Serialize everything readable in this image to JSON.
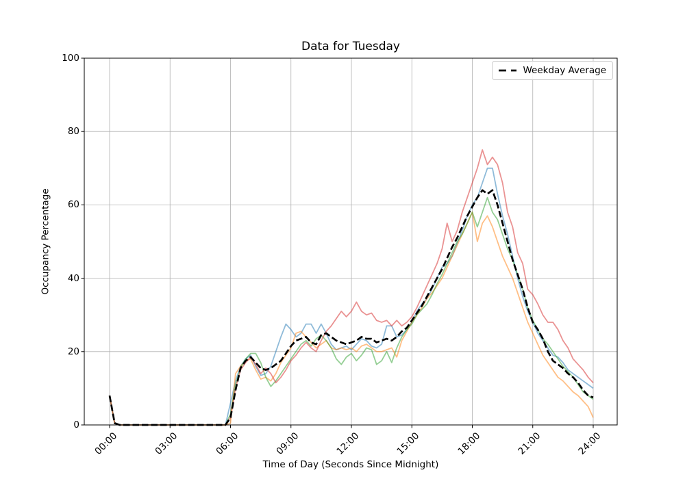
{
  "figure": {
    "title": "Data for Tuesday",
    "xlabel": "Time of Day (Seconds Since Midnight)",
    "ylabel": "Occupancy Percentage",
    "legend_label": "Weekday Average"
  },
  "axes": {
    "x_tick_labels": [
      "00:00",
      "03:00",
      "06:00",
      "09:00",
      "12:00",
      "15:00",
      "18:00",
      "21:00",
      "24:00"
    ],
    "y_tick_labels": [
      "0",
      "20",
      "40",
      "60",
      "80",
      "100"
    ],
    "grid_color": "#b0b0b0",
    "spine_color": "#000000",
    "legend_border_color": "#cccccc"
  },
  "chart_data": {
    "type": "line",
    "title": "Data for Tuesday",
    "xlabel": "Time of Day (Seconds Since Midnight)",
    "ylabel": "Occupancy Percentage",
    "ylim": [
      0,
      100
    ],
    "x_hours_range": [
      0,
      24
    ],
    "x_step_hours": 0.25,
    "grid": true,
    "legend_position": "upper right",
    "x_tick_labels": [
      "00:00",
      "03:00",
      "06:00",
      "09:00",
      "12:00",
      "15:00",
      "18:00",
      "21:00",
      "24:00"
    ],
    "y_ticks": [
      0,
      20,
      40,
      60,
      80,
      100
    ],
    "series": [
      {
        "name": "series-blue",
        "color": "#1f77b4",
        "opacity": 0.5,
        "dashed": false,
        "values": [
          8,
          0.5,
          0,
          0,
          0,
          0,
          0,
          0,
          0,
          0,
          0,
          0,
          0,
          0,
          0,
          0,
          0,
          0,
          0,
          0,
          0,
          0,
          0,
          0,
          6,
          12,
          16,
          18,
          19,
          16,
          13.5,
          14,
          16,
          20,
          24,
          27.5,
          26,
          24,
          25,
          27.5,
          27.5,
          25,
          27.5,
          25,
          22,
          20.5,
          21,
          21.5,
          20.5,
          22,
          23.5,
          23,
          21.5,
          21,
          22,
          27,
          27,
          24,
          24.5,
          26,
          28,
          31,
          33,
          34.5,
          37,
          40,
          43,
          44,
          46,
          49.5,
          53,
          57,
          60,
          62,
          66,
          70,
          70,
          63,
          57,
          52,
          46,
          40,
          35,
          31,
          28,
          25,
          23,
          21,
          19,
          18.5,
          17,
          15,
          14,
          13,
          12,
          11,
          10
        ]
      },
      {
        "name": "series-orange",
        "color": "#ff7f0e",
        "opacity": 0.5,
        "dashed": false,
        "values": [
          8,
          0.5,
          0,
          0,
          0,
          0,
          0,
          0,
          0,
          0,
          0,
          0,
          0,
          0,
          0,
          0,
          0,
          0,
          0,
          0,
          0,
          0,
          0,
          0,
          0.5,
          14,
          16,
          17.5,
          18,
          15,
          12.5,
          13,
          12,
          14,
          17,
          19,
          21,
          25,
          25.5,
          24,
          22.5,
          21,
          22,
          23,
          21,
          20.5,
          21,
          20.5,
          21,
          20,
          21.5,
          22,
          21,
          20,
          20,
          20.5,
          21,
          18.5,
          23,
          25.5,
          28,
          30,
          32,
          34.5,
          36,
          38,
          40,
          43,
          46,
          49,
          52,
          55,
          58,
          50,
          55,
          57,
          54,
          50,
          46,
          43,
          40,
          36,
          32,
          28,
          25,
          22,
          19,
          17,
          15,
          13,
          12,
          10.5,
          9,
          8,
          6.5,
          5,
          2
        ]
      },
      {
        "name": "series-green",
        "color": "#2ca02c",
        "opacity": 0.5,
        "dashed": false,
        "values": [
          8,
          0.5,
          0,
          0,
          0,
          0,
          0,
          0,
          0,
          0,
          0,
          0,
          0,
          0,
          0,
          0,
          0,
          0,
          0,
          0,
          0,
          0,
          0,
          0,
          3,
          11,
          15.5,
          18,
          19.5,
          19.5,
          17,
          13,
          10.5,
          12,
          14,
          16,
          18,
          20,
          22,
          23,
          21.5,
          23.5,
          24.5,
          23,
          21,
          18,
          16.5,
          18.5,
          19.5,
          17.5,
          19,
          21,
          20.5,
          16.5,
          17.5,
          20,
          17,
          21,
          24,
          26,
          27.5,
          30,
          31.5,
          33,
          35.5,
          38.5,
          41,
          44,
          47,
          50,
          52,
          55,
          58,
          54,
          58,
          62,
          58,
          56,
          52,
          48,
          45,
          41,
          37,
          32,
          28.5,
          26,
          23.5,
          22,
          20,
          18,
          16,
          14.5,
          13,
          11,
          9,
          8,
          7
        ]
      },
      {
        "name": "series-red",
        "color": "#d62728",
        "opacity": 0.5,
        "dashed": false,
        "values": [
          8,
          0.5,
          0,
          0,
          0,
          0,
          0,
          0,
          0,
          0,
          0,
          0,
          0,
          0,
          0,
          0,
          0,
          0,
          0,
          0,
          0,
          0,
          0,
          0,
          2,
          10,
          15,
          17,
          18.5,
          16.5,
          14,
          15.5,
          14,
          11.5,
          13,
          15,
          17.5,
          19,
          21,
          22.5,
          21,
          20,
          23,
          25.5,
          27,
          29,
          31,
          29.5,
          31,
          33.5,
          31,
          30,
          30.5,
          28.5,
          28,
          28.5,
          27,
          28.5,
          27,
          28,
          29.5,
          32,
          35,
          38,
          41,
          44,
          48,
          55,
          50,
          53,
          58,
          62,
          66,
          70,
          75,
          71,
          73,
          71,
          66,
          58,
          54,
          47,
          44,
          37,
          35.5,
          33,
          30,
          28,
          28,
          26,
          23,
          21,
          18,
          16.5,
          15,
          13,
          11.5
        ]
      },
      {
        "name": "Weekday Average",
        "color": "#000000",
        "opacity": 1,
        "dashed": true,
        "values": [
          8,
          0.5,
          0,
          0,
          0,
          0,
          0,
          0,
          0,
          0,
          0,
          0,
          0,
          0,
          0,
          0,
          0,
          0,
          0,
          0,
          0,
          0,
          0,
          0,
          2,
          9.5,
          15.5,
          17.5,
          18.5,
          17,
          15.5,
          15,
          15.5,
          16.5,
          17.5,
          19.5,
          21.5,
          23,
          23.5,
          24,
          22.5,
          22,
          24.5,
          25,
          24,
          23,
          22.5,
          22,
          22.5,
          23,
          24,
          23.5,
          23.5,
          22.5,
          23,
          23.5,
          23,
          24,
          25.5,
          26.5,
          28.5,
          30.5,
          32.5,
          35,
          37.5,
          40,
          42.5,
          45.5,
          48.5,
          51,
          54,
          57,
          59.5,
          62,
          64,
          63,
          64,
          60,
          55,
          50,
          45,
          41,
          37,
          32,
          28,
          26,
          23.5,
          20,
          17.5,
          16.5,
          15.5,
          14,
          13,
          11.5,
          9.5,
          8,
          7.5
        ]
      }
    ]
  }
}
